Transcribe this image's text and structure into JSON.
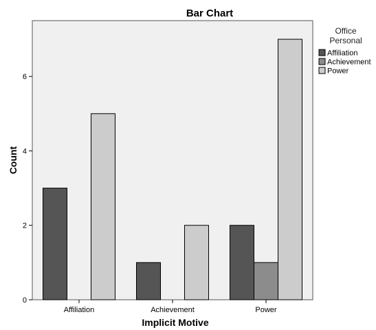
{
  "chart_data": {
    "type": "bar",
    "title": "Bar Chart",
    "xlabel": "Implicit Motive",
    "ylabel": "Count",
    "categories": [
      "Affiliation",
      "Achievement",
      "Power"
    ],
    "ylim": [
      0,
      7.5
    ],
    "yticks": [
      0,
      2,
      4,
      6
    ],
    "grid": false,
    "legend_placement": "top-right outside",
    "legend_title": [
      "Office",
      "Personal"
    ],
    "series": [
      {
        "name": "Affiliation",
        "values": [
          3,
          1,
          2
        ],
        "color": "#555555"
      },
      {
        "name": "Achievement",
        "values": [
          0,
          0,
          1
        ],
        "color": "#8c8c8c"
      },
      {
        "name": "Power",
        "values": [
          5,
          2,
          7
        ],
        "color": "#cccccc"
      }
    ],
    "plot_background": "#f0f0f0"
  }
}
